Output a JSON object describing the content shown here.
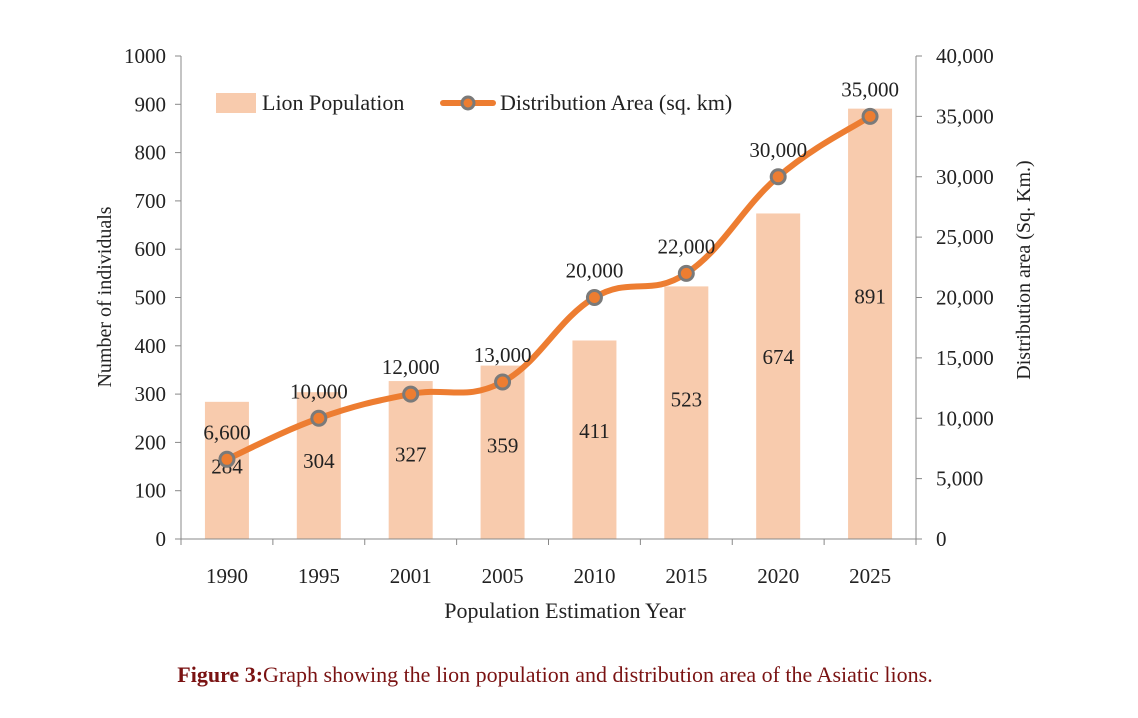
{
  "chart_data": {
    "type": "bar",
    "title": "",
    "xlabel": "Population Estimation Year",
    "ylabel": "Number of individuals",
    "y2label": "Distribution area (Sq. Km.)",
    "categories": [
      "1990",
      "1995",
      "2001",
      "2005",
      "2010",
      "2015",
      "2020",
      "2025"
    ],
    "ylim": [
      0,
      1000
    ],
    "y2lim": [
      0,
      40000
    ],
    "yticks": [
      "0",
      "100",
      "200",
      "300",
      "400",
      "500",
      "600",
      "700",
      "800",
      "900",
      "1000"
    ],
    "y2ticks": [
      "0",
      "5,000",
      "10,000",
      "15,000",
      "20,000",
      "25,000",
      "30,000",
      "35,000",
      "40,000"
    ],
    "legend_position": "top-left",
    "grid": false,
    "series": [
      {
        "name": "Lion Population",
        "kind": "bar",
        "axis": "left",
        "color": "#f8cbad",
        "values": [
          284,
          304,
          327,
          359,
          411,
          523,
          674,
          891
        ],
        "labels": [
          "284",
          "304",
          "327",
          "359",
          "411",
          "523",
          "674",
          "891"
        ]
      },
      {
        "name": "Distribution Area (sq. km)",
        "kind": "line",
        "axis": "right",
        "color": "#ed7d31",
        "marker_color": "#7a7a7a",
        "values": [
          6600,
          10000,
          12000,
          13000,
          20000,
          22000,
          30000,
          35000
        ],
        "labels": [
          "6,600",
          "10,000",
          "12,000",
          "13,000",
          "20,000",
          "22,000",
          "30,000",
          "35,000"
        ]
      }
    ]
  },
  "caption": {
    "label": "Figure 3:",
    "text": "Graph showing the lion population and distribution area of the Asiatic lions."
  }
}
